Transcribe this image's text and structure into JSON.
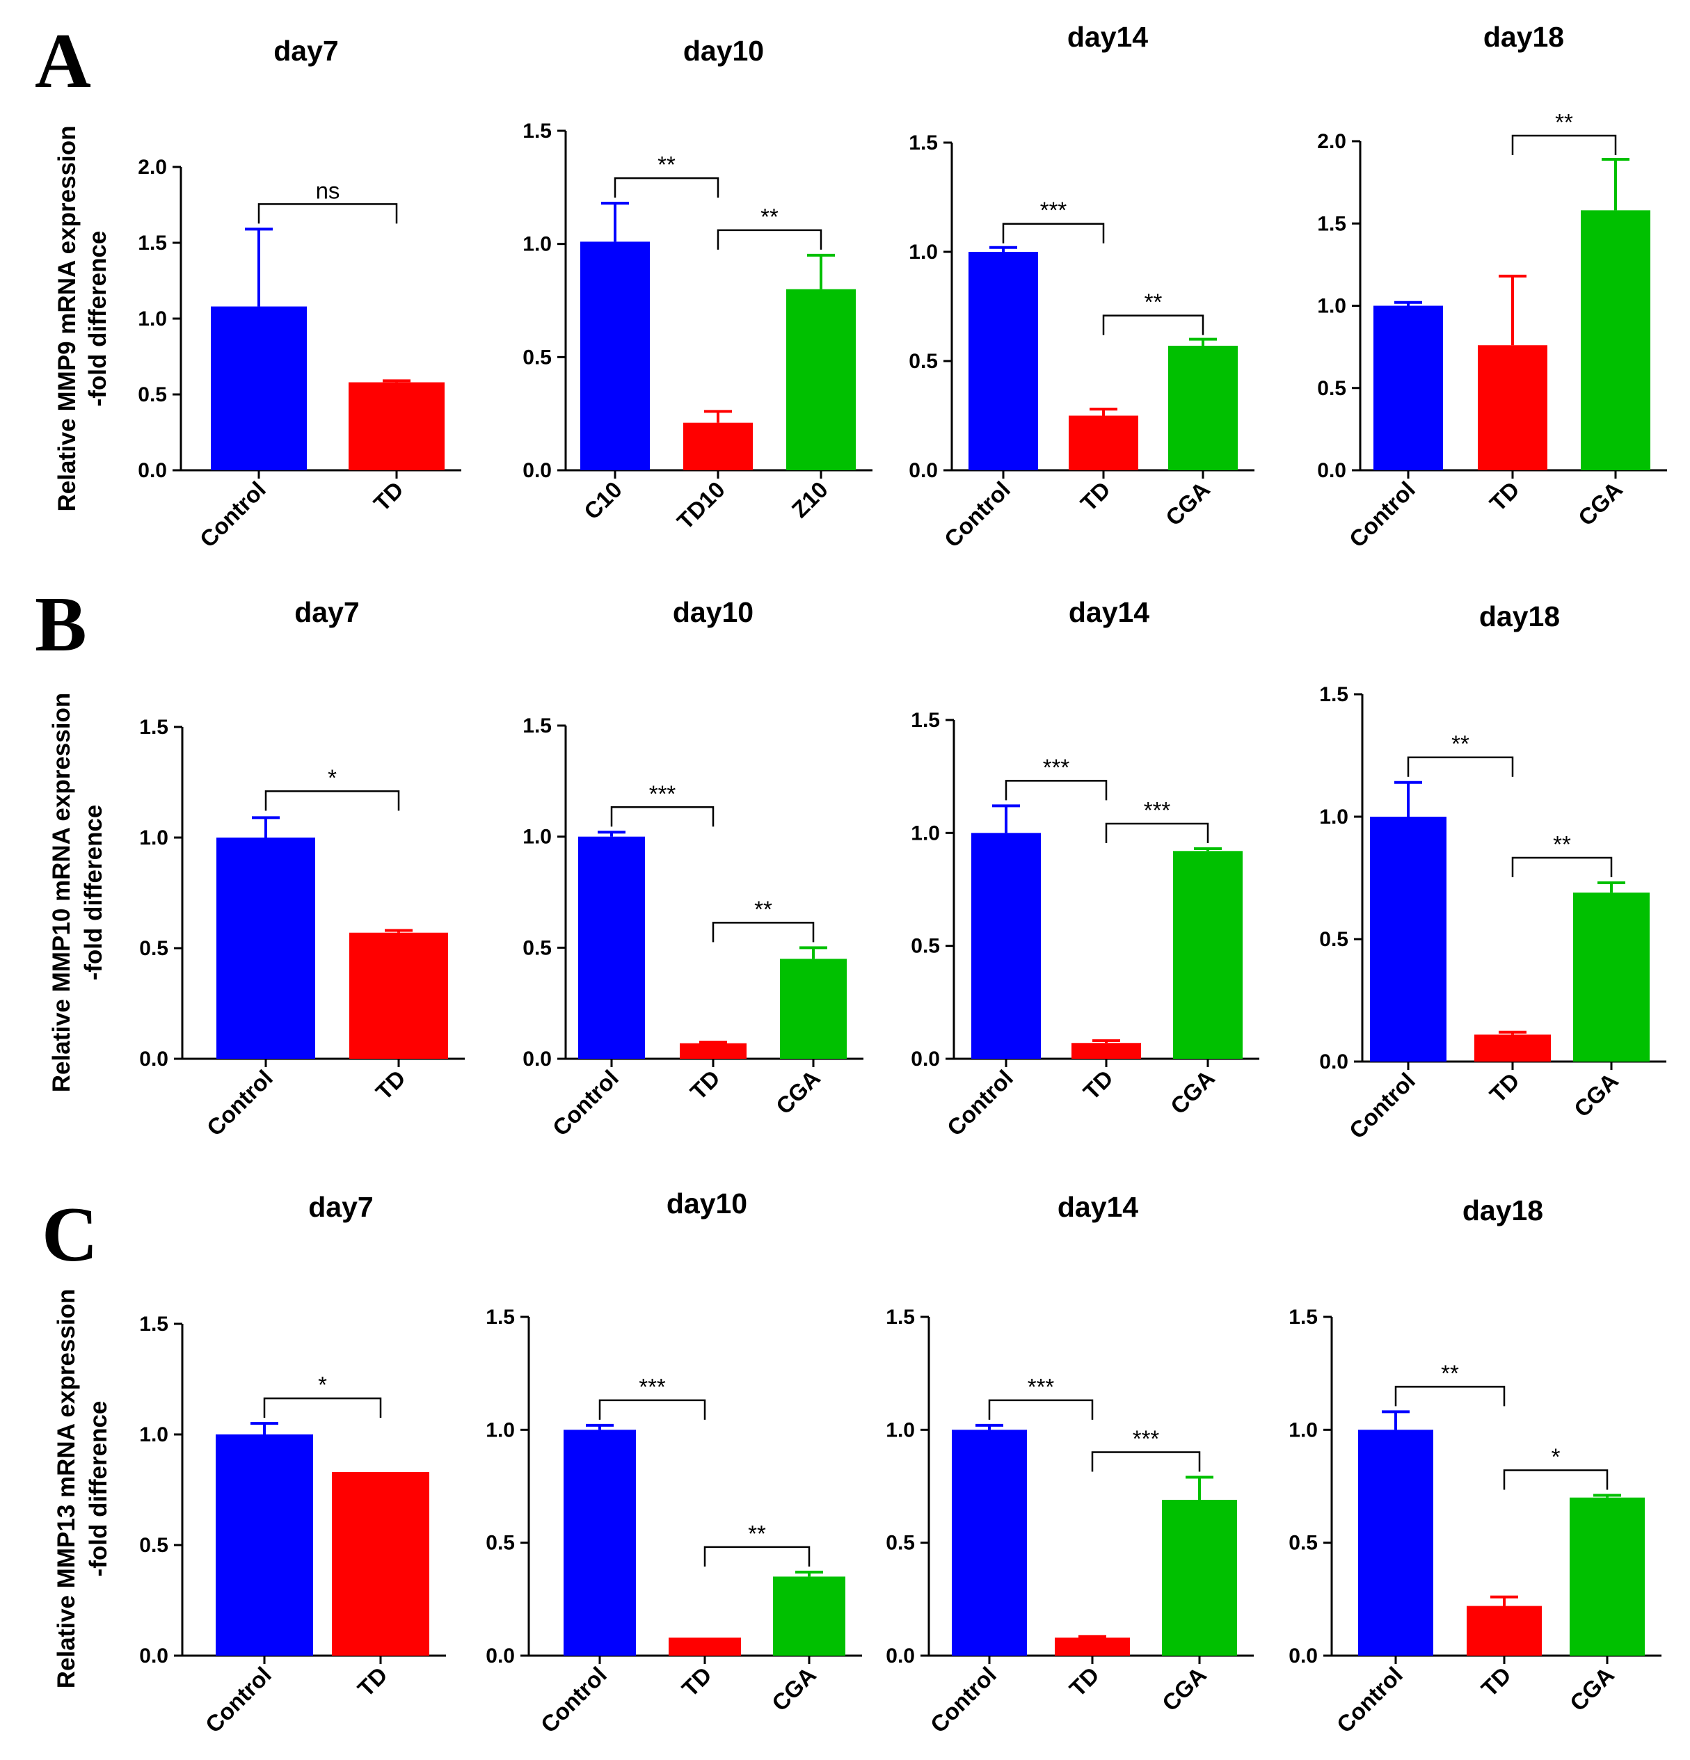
{
  "colors": {
    "blue": "#0000ff",
    "red": "#ff0000",
    "green": "#00c000",
    "axis": "#000000"
  },
  "panels": [
    {
      "id": "A",
      "label": "A",
      "ylabel_line1": "Relative MMP9 mRNA expression",
      "ylabel_line2": "-fold difference"
    },
    {
      "id": "B",
      "label": "B",
      "ylabel_line1": "Relative MMP10 mRNA expression",
      "ylabel_line2": "-fold difference"
    },
    {
      "id": "C",
      "label": "C",
      "ylabel_line1": "Relative MMP13 mRNA expression",
      "ylabel_line2": "-fold difference"
    }
  ],
  "chart_data": [
    {
      "panel": "A",
      "type": "bar",
      "title": "day7",
      "categories": [
        "Control",
        "TD"
      ],
      "values": [
        1.08,
        0.58
      ],
      "errors": [
        0.51,
        0.01
      ],
      "bar_colors": [
        "blue",
        "red"
      ],
      "ylim": [
        0,
        2.0
      ],
      "yticks": [
        "0.0",
        "0.5",
        "1.0",
        "1.5",
        "2.0"
      ],
      "ylabel": "Relative MMP9 mRNA expression -fold difference",
      "annotations": [
        {
          "from": 0,
          "to": 1,
          "label": "ns"
        }
      ]
    },
    {
      "panel": "A",
      "type": "bar",
      "title": "day10",
      "categories": [
        "C10",
        "TD10",
        "Z10"
      ],
      "values": [
        1.01,
        0.21,
        0.8
      ],
      "errors": [
        0.17,
        0.05,
        0.15
      ],
      "bar_colors": [
        "blue",
        "red",
        "green"
      ],
      "ylim": [
        0,
        1.5
      ],
      "yticks": [
        "0.0",
        "0.5",
        "1.0",
        "1.5"
      ],
      "ylabel": "",
      "annotations": [
        {
          "from": 0,
          "to": 1,
          "label": "**"
        },
        {
          "from": 1,
          "to": 2,
          "label": "**"
        }
      ]
    },
    {
      "panel": "A",
      "type": "bar",
      "title": "day14",
      "categories": [
        "Control",
        "TD",
        "CGA"
      ],
      "values": [
        1.0,
        0.25,
        0.57
      ],
      "errors": [
        0.02,
        0.03,
        0.03
      ],
      "bar_colors": [
        "blue",
        "red",
        "green"
      ],
      "ylim": [
        0,
        1.5
      ],
      "yticks": [
        "0.0",
        "0.5",
        "1.0",
        "1.5"
      ],
      "ylabel": "",
      "annotations": [
        {
          "from": 0,
          "to": 1,
          "label": "***"
        },
        {
          "from": 1,
          "to": 2,
          "label": "**"
        }
      ]
    },
    {
      "panel": "A",
      "type": "bar",
      "title": "day18",
      "categories": [
        "Control",
        "TD",
        "CGA"
      ],
      "values": [
        1.0,
        0.76,
        1.58
      ],
      "errors": [
        0.02,
        0.42,
        0.31
      ],
      "bar_colors": [
        "blue",
        "red",
        "green"
      ],
      "ylim": [
        0,
        2.0
      ],
      "yticks": [
        "0.0",
        "0.5",
        "1.0",
        "1.5",
        "2.0"
      ],
      "ylabel": "",
      "annotations": [
        {
          "from": 1,
          "to": 2,
          "label": "**"
        }
      ]
    },
    {
      "panel": "B",
      "type": "bar",
      "title": "day7",
      "categories": [
        "Control",
        "TD"
      ],
      "values": [
        1.0,
        0.57
      ],
      "errors": [
        0.09,
        0.01
      ],
      "bar_colors": [
        "blue",
        "red"
      ],
      "ylim": [
        0,
        1.5
      ],
      "yticks": [
        "0.0",
        "0.5",
        "1.0",
        "1.5"
      ],
      "ylabel": "Relative MMP10 mRNA expression -fold difference",
      "annotations": [
        {
          "from": 0,
          "to": 1,
          "label": "*"
        }
      ]
    },
    {
      "panel": "B",
      "type": "bar",
      "title": "day10",
      "categories": [
        "Control",
        "TD",
        "CGA"
      ],
      "values": [
        1.0,
        0.07,
        0.45
      ],
      "errors": [
        0.02,
        0.005,
        0.05
      ],
      "bar_colors": [
        "blue",
        "red",
        "green"
      ],
      "ylim": [
        0,
        1.5
      ],
      "yticks": [
        "0.0",
        "0.5",
        "1.0",
        "1.5"
      ],
      "ylabel": "",
      "annotations": [
        {
          "from": 0,
          "to": 1,
          "label": "***"
        },
        {
          "from": 1,
          "to": 2,
          "label": "**"
        }
      ]
    },
    {
      "panel": "B",
      "type": "bar",
      "title": "day14",
      "categories": [
        "Control",
        "TD",
        "CGA"
      ],
      "values": [
        1.0,
        0.07,
        0.92
      ],
      "errors": [
        0.12,
        0.01,
        0.01
      ],
      "bar_colors": [
        "blue",
        "red",
        "green"
      ],
      "ylim": [
        0,
        1.5
      ],
      "yticks": [
        "0.0",
        "0.5",
        "1.0",
        "1.5"
      ],
      "ylabel": "",
      "annotations": [
        {
          "from": 0,
          "to": 1,
          "label": "***"
        },
        {
          "from": 1,
          "to": 2,
          "label": "***"
        }
      ]
    },
    {
      "panel": "B",
      "type": "bar",
      "title": "day18",
      "categories": [
        "Control",
        "TD",
        "CGA"
      ],
      "values": [
        1.0,
        0.11,
        0.69
      ],
      "errors": [
        0.14,
        0.01,
        0.04
      ],
      "bar_colors": [
        "blue",
        "red",
        "green"
      ],
      "ylim": [
        0,
        1.5
      ],
      "yticks": [
        "0.0",
        "0.5",
        "1.0",
        "1.5"
      ],
      "ylabel": "",
      "annotations": [
        {
          "from": 0,
          "to": 1,
          "label": "**"
        },
        {
          "from": 1,
          "to": 2,
          "label": "**"
        }
      ]
    },
    {
      "panel": "C",
      "type": "bar",
      "title": "day7",
      "categories": [
        "Control",
        "TD"
      ],
      "values": [
        1.0,
        0.83
      ],
      "errors": [
        0.05,
        0.0
      ],
      "bar_colors": [
        "blue",
        "red"
      ],
      "ylim": [
        0,
        1.5
      ],
      "yticks": [
        "0.0",
        "0.5",
        "1.0",
        "1.5"
      ],
      "ylabel": "Relative MMP13 mRNA expression -fold difference",
      "annotations": [
        {
          "from": 0,
          "to": 1,
          "label": "*"
        }
      ]
    },
    {
      "panel": "C",
      "type": "bar",
      "title": "day10",
      "categories": [
        "Control",
        "TD",
        "CGA"
      ],
      "values": [
        1.0,
        0.08,
        0.35
      ],
      "errors": [
        0.02,
        0.0,
        0.02
      ],
      "bar_colors": [
        "blue",
        "red",
        "green"
      ],
      "ylim": [
        0,
        1.5
      ],
      "yticks": [
        "0.0",
        "0.5",
        "1.0",
        "1.5"
      ],
      "ylabel": "",
      "annotations": [
        {
          "from": 0,
          "to": 1,
          "label": "***"
        },
        {
          "from": 1,
          "to": 2,
          "label": "**"
        }
      ]
    },
    {
      "panel": "C",
      "type": "bar",
      "title": "day14",
      "categories": [
        "Control",
        "TD",
        "CGA"
      ],
      "values": [
        1.0,
        0.08,
        0.69
      ],
      "errors": [
        0.02,
        0.005,
        0.1
      ],
      "bar_colors": [
        "blue",
        "red",
        "green"
      ],
      "ylim": [
        0,
        1.5
      ],
      "yticks": [
        "0.0",
        "0.5",
        "1.0",
        "1.5"
      ],
      "ylabel": "",
      "annotations": [
        {
          "from": 0,
          "to": 1,
          "label": "***"
        },
        {
          "from": 1,
          "to": 2,
          "label": "***"
        }
      ]
    },
    {
      "panel": "C",
      "type": "bar",
      "title": "day18",
      "categories": [
        "Control",
        "TD",
        "CGA"
      ],
      "values": [
        1.0,
        0.22,
        0.7
      ],
      "errors": [
        0.08,
        0.04,
        0.01
      ],
      "bar_colors": [
        "blue",
        "red",
        "green"
      ],
      "ylim": [
        0,
        1.5
      ],
      "yticks": [
        "0.0",
        "0.5",
        "1.0",
        "1.5"
      ],
      "ylabel": "",
      "annotations": [
        {
          "from": 0,
          "to": 1,
          "label": "**"
        },
        {
          "from": 1,
          "to": 2,
          "label": "*"
        }
      ]
    }
  ]
}
